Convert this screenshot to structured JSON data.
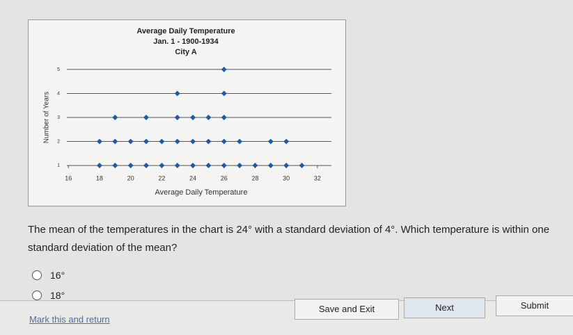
{
  "chart_data": {
    "type": "scatter",
    "title_lines": [
      "Average Daily Temperature",
      "Jan. 1 - 1900-1934",
      "City A"
    ],
    "x_label": "Average Daily Temperature",
    "y_label": "Number of Years",
    "x": [
      26,
      23,
      26,
      19,
      21,
      23,
      24,
      25,
      26,
      18,
      19,
      20,
      21,
      22,
      23,
      24,
      25,
      26,
      27,
      29,
      30,
      18,
      19,
      20,
      21,
      22,
      23,
      24,
      25,
      26,
      27,
      28,
      29,
      30,
      31
    ],
    "values": [
      5,
      4,
      4,
      3,
      3,
      3,
      3,
      3,
      3,
      2,
      2,
      2,
      2,
      2,
      2,
      2,
      2,
      2,
      2,
      2,
      2,
      1,
      1,
      1,
      1,
      1,
      1,
      1,
      1,
      1,
      1,
      1,
      1,
      1,
      1
    ],
    "color": "#1f5aa6",
    "xlim": [
      15.9,
      32.9
    ],
    "xticks": [
      16,
      18,
      20,
      22,
      24,
      26,
      28,
      30,
      32
    ],
    "ylim": [
      0.8,
      5.2
    ],
    "yticks": [
      1,
      2,
      3,
      4,
      5
    ],
    "grid": true
  },
  "question": "The mean of the temperatures in the chart is 24° with a standard deviation of 4°. Which temperature is within one standard deviation of the mean?",
  "options": [
    "16°",
    "18°"
  ],
  "footer": {
    "mark": "Mark this and return",
    "save": "Save and Exit",
    "next": "Next",
    "submit": "Submit"
  }
}
